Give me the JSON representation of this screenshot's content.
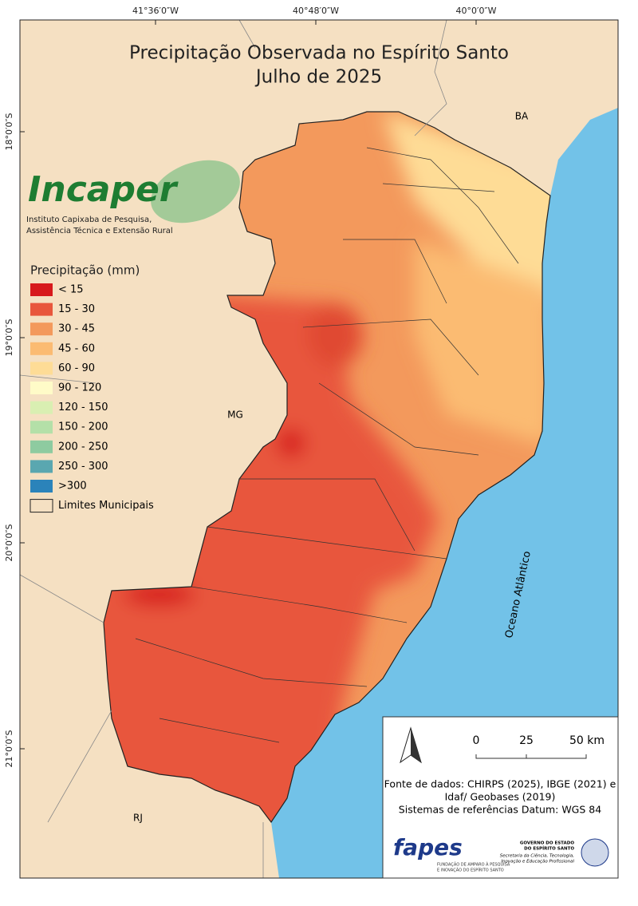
{
  "map": {
    "title": [
      "Precipitação Observada no Espírito Santo",
      "Julho de 2025"
    ],
    "lon_labels": [
      "41°36′0″W",
      "40°48′0″W",
      "40°0′0″W"
    ],
    "lat_labels": [
      "18°0′0″S",
      "19°0′0″S",
      "20°0′0″S",
      "21°0′0″S"
    ],
    "region_labels": {
      "ba": "BA",
      "mg": "MG",
      "rj": "RJ",
      "ocean": "Oceano Atlântico"
    }
  },
  "logo": {
    "name": "Incaper",
    "subtitle": [
      "Instituto Capixaba de Pesquisa,",
      "Assistência Técnica e Extensão Rural"
    ]
  },
  "legend": {
    "title": "Precipitação (mm)",
    "items": [
      {
        "label": "< 15",
        "color": "#d7191c"
      },
      {
        "label": "15 - 30",
        "color": "#e8563c"
      },
      {
        "label": "30 - 45",
        "color": "#f3995c"
      },
      {
        "label": "45 - 60",
        "color": "#fbbb72"
      },
      {
        "label": "60 - 90",
        "color": "#fedc96"
      },
      {
        "label": "90 - 120",
        "color": "#fffbc8"
      },
      {
        "label": "120 - 150",
        "color": "#d9efb2"
      },
      {
        "label": "150 - 200",
        "color": "#b4e0a8"
      },
      {
        "label": "200 - 250",
        "color": "#8ecba0"
      },
      {
        "label": "250 - 300",
        "color": "#5aa7b0"
      },
      {
        "label": ">300",
        "color": "#2b83ba"
      }
    ],
    "boundary": "Limites Municipais"
  },
  "scale": {
    "labels": [
      "0",
      "25",
      "50 km"
    ]
  },
  "sources": [
    "Fonte de dados: CHIRPS (2025), IBGE (2021) e",
    "Idaf/ Geobases (2019)",
    "Sistemas de referências Datum: WGS 84"
  ],
  "footer": {
    "fapes": "fapes",
    "fapes_sub": [
      "FUNDAÇÃO DE AMPARO À PESQUISA",
      "E INOVAÇÃO DO ESPÍRITO SANTO"
    ],
    "gov": [
      "GOVERNO DO ESTADO",
      "DO ESPÍRITO SANTO"
    ],
    "secretaria": [
      "Secretaria da Ciência, Tecnologia,",
      "Inovação e Educação Profissional"
    ]
  }
}
